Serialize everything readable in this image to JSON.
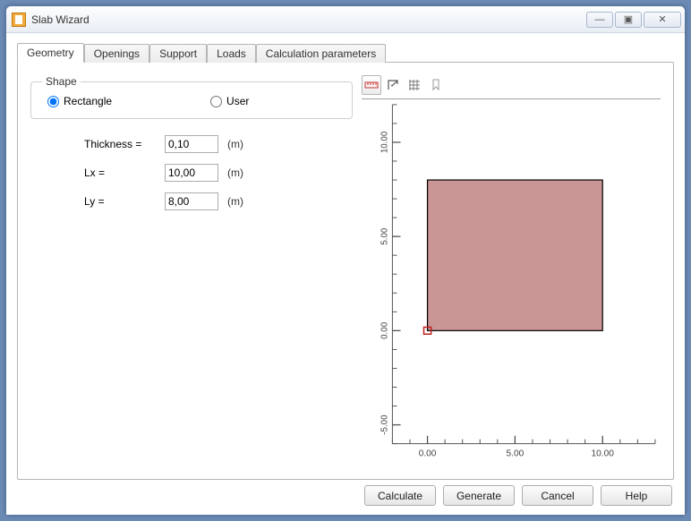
{
  "window": {
    "title": "Slab Wizard",
    "controls": {
      "min": "—",
      "max": "▣",
      "close": "✕"
    }
  },
  "tabs": {
    "items": [
      "Geometry",
      "Openings",
      "Support",
      "Loads",
      "Calculation parameters"
    ],
    "active_index": 0
  },
  "shape_group": {
    "legend": "Shape",
    "rectangle_label": "Rectangle",
    "user_label": "User",
    "selected": "rectangle"
  },
  "params": {
    "thickness": {
      "label": "Thickness =",
      "value": "0,10",
      "unit": "(m)"
    },
    "lx": {
      "label": "Lx =",
      "value": "10,00",
      "unit": "(m)"
    },
    "ly": {
      "label": "Ly =",
      "value": "8,00",
      "unit": "(m)"
    }
  },
  "toolbar_icons": [
    "ruler",
    "export-arrow",
    "grid",
    "bookmark"
  ],
  "preview": {
    "rect_lx": 10.0,
    "rect_ly": 8.0,
    "rect_color": "#c99595",
    "rect_border": "#000000",
    "origin_marker_color": "#c02020",
    "background": "#ffffff",
    "axis_color": "#555555",
    "x_range": [
      -2,
      13
    ],
    "y_range": [
      -6,
      12
    ],
    "x_ticks": [
      0.0,
      5.0,
      10.0
    ],
    "y_ticks": [
      -5.0,
      0.0,
      5.0,
      10.0
    ],
    "x_tick_labels": [
      "0.00",
      "5.00",
      "10.00"
    ],
    "y_tick_labels": [
      "-5.00",
      "0.00",
      "5.00",
      "10.00"
    ],
    "tick_fontsize": 10
  },
  "buttons": {
    "calculate": "Calculate",
    "generate": "Generate",
    "cancel": "Cancel",
    "help": "Help"
  }
}
